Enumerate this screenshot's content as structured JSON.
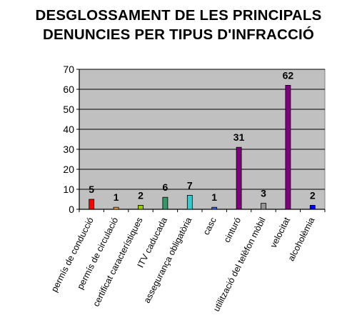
{
  "title_lines": [
    "DESGLOSSAMENT DE LES PRINCIPALS",
    "DENUNCIES PER TIPUS D'INFRACCIÓ"
  ],
  "chart_data": {
    "type": "bar",
    "title": "DESGLOSSAMENT DE LES PRINCIPALS DENUNCIES PER TIPUS D'INFRACCIÓ",
    "xlabel": "",
    "ylabel": "",
    "ylim": [
      0,
      70
    ],
    "y_ticks": [
      0,
      10,
      20,
      30,
      40,
      50,
      60,
      70
    ],
    "grid": true,
    "background_color": "#c0c0c0",
    "categories": [
      "permís de conducció",
      "permís de circulació",
      "certificat característiques",
      "ITV caducada",
      "assegurança obligatòria",
      "casc",
      "cinturó",
      "utilització del telèfon mòbil",
      "velocitat",
      "alcoholèmia"
    ],
    "values": [
      5,
      1,
      2,
      6,
      7,
      1,
      31,
      3,
      62,
      2
    ],
    "data_labels": [
      "5",
      "1",
      "2",
      "6",
      "7",
      "1",
      "31",
      "3",
      "62",
      "2"
    ],
    "bar_colors": [
      "#ff0000",
      "#ff9933",
      "#99cc00",
      "#339966",
      "#33cccc",
      "#3366ff",
      "#800080",
      "#969696",
      "#800080",
      "#0000ff"
    ]
  }
}
